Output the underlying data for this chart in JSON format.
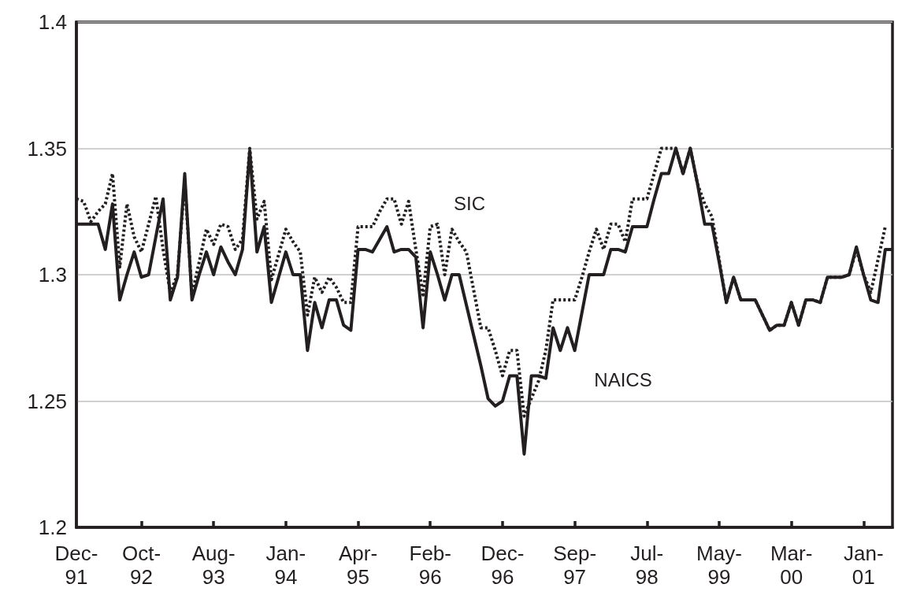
{
  "chart_data": {
    "type": "line",
    "categories": [
      "Dec-91",
      null,
      null,
      null,
      null,
      null,
      null,
      null,
      null,
      "Oct-92",
      null,
      null,
      null,
      null,
      null,
      null,
      null,
      null,
      null,
      "Aug-93",
      null,
      null,
      null,
      null,
      null,
      null,
      null,
      null,
      null,
      "Jan-94",
      null,
      null,
      null,
      null,
      null,
      null,
      null,
      null,
      null,
      "Apr-95",
      null,
      null,
      null,
      null,
      null,
      null,
      null,
      null,
      null,
      "Feb-96",
      null,
      null,
      null,
      null,
      null,
      null,
      null,
      null,
      null,
      "Dec-96",
      null,
      null,
      null,
      null,
      null,
      null,
      null,
      null,
      null,
      "Sep-97",
      null,
      null,
      null,
      null,
      null,
      null,
      null,
      null,
      null,
      "Jul-98",
      null,
      null,
      null,
      null,
      null,
      null,
      null,
      null,
      null,
      "May-99",
      null,
      null,
      null,
      null,
      null,
      null,
      null,
      null,
      null,
      "Mar-00",
      null,
      null,
      null,
      null,
      null,
      null,
      null,
      null,
      null,
      "Jan-01",
      null,
      null,
      null,
      null
    ],
    "ylim": [
      1.2,
      1.4
    ],
    "yticks": [
      1.2,
      1.25,
      1.3,
      1.35,
      1.4
    ],
    "grid": "y",
    "marker": "none",
    "series": [
      {
        "color": "#231f20",
        "line_style": "dotted",
        "values": [
          1.33,
          1.329,
          1.321,
          1.325,
          1.328,
          1.34,
          1.303,
          1.328,
          1.315,
          1.309,
          1.32,
          1.331,
          1.31,
          1.293,
          1.3,
          1.337,
          1.292,
          1.305,
          1.318,
          1.312,
          1.32,
          1.319,
          1.31,
          1.314,
          1.35,
          1.322,
          1.329,
          1.298,
          1.308,
          1.318,
          1.313,
          1.309,
          1.284,
          1.299,
          1.293,
          1.299,
          1.295,
          1.289,
          1.289,
          1.319,
          1.319,
          1.319,
          1.325,
          1.33,
          1.33,
          1.32,
          1.329,
          1.31,
          1.292,
          1.319,
          1.32,
          1.3,
          1.318,
          1.313,
          1.309,
          1.294,
          1.279,
          1.279,
          1.27,
          1.26,
          1.27,
          1.27,
          1.244,
          1.251,
          1.258,
          1.27,
          1.29,
          1.29,
          1.29,
          1.29,
          1.299,
          1.309,
          1.318,
          1.31,
          1.32,
          1.32,
          1.313,
          1.33,
          1.33,
          1.33,
          1.34,
          1.35,
          1.35,
          1.35,
          1.34,
          1.35,
          1.336,
          1.328,
          1.323,
          1.306,
          1.289,
          1.299,
          1.29,
          1.29,
          1.29,
          1.284,
          1.278,
          1.28,
          1.28,
          1.289,
          1.28,
          1.29,
          1.29,
          1.289,
          1.299,
          1.299,
          1.299,
          1.3,
          1.31,
          1.3,
          1.293,
          1.306,
          1.319,
          null
        ]
      },
      {
        "color": "#231f20",
        "line_style": "solid",
        "values": [
          1.32,
          1.32,
          1.32,
          1.32,
          1.31,
          1.328,
          1.29,
          1.3,
          1.309,
          1.299,
          1.3,
          1.315,
          1.33,
          1.29,
          1.299,
          1.34,
          1.29,
          1.3,
          1.309,
          1.3,
          1.311,
          1.305,
          1.3,
          1.31,
          1.349,
          1.309,
          1.319,
          1.289,
          1.299,
          1.309,
          1.3,
          1.3,
          1.27,
          1.289,
          1.279,
          1.29,
          1.29,
          1.28,
          1.278,
          1.31,
          1.31,
          1.309,
          1.314,
          1.319,
          1.309,
          1.31,
          1.31,
          1.307,
          1.279,
          1.309,
          1.3,
          1.29,
          1.3,
          1.3,
          1.288,
          1.276,
          1.264,
          1.251,
          1.248,
          1.25,
          1.26,
          1.26,
          1.229,
          1.26,
          1.26,
          1.259,
          1.279,
          1.27,
          1.279,
          1.27,
          1.285,
          1.3,
          1.3,
          1.3,
          1.31,
          1.31,
          1.309,
          1.319,
          1.319,
          1.319,
          1.33,
          1.34,
          1.34,
          1.35,
          1.34,
          1.35,
          1.336,
          1.32,
          1.32,
          1.305,
          1.289,
          1.299,
          1.29,
          1.29,
          1.29,
          1.284,
          1.278,
          1.28,
          1.28,
          1.289,
          1.28,
          1.29,
          1.29,
          1.289,
          1.299,
          1.299,
          1.299,
          1.3,
          1.311,
          1.3,
          1.29,
          1.289,
          1.31,
          1.31
        ]
      }
    ],
    "annotations": [
      "SIC",
      "NAICS"
    ]
  }
}
